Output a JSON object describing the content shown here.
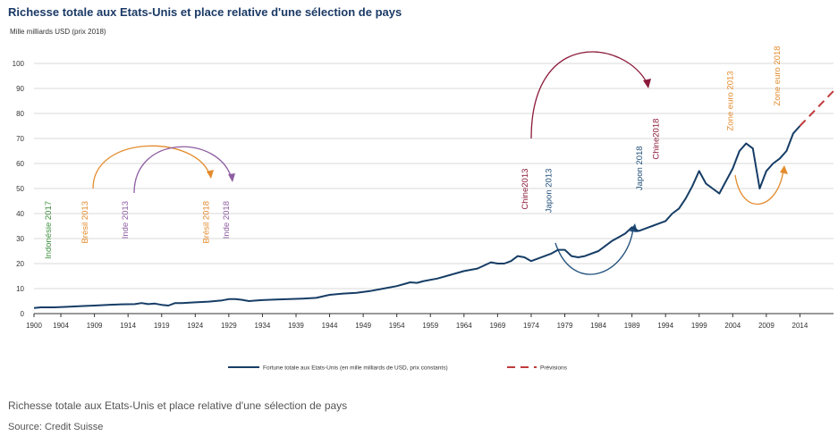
{
  "figure": {
    "title": "Richesse totale aux Etats-Unis et place relative d'une sélection de pays",
    "unit": "Mille milliards USD (prix 2018)",
    "caption": "Richesse totale aux Etats-Unis et place relative d'une sélection de pays",
    "source": "Source: Credit Suisse"
  },
  "colors": {
    "series": "#163d66",
    "forecast": "#c0393b",
    "grid": "#d9d9d9",
    "axis": "#333333"
  },
  "chart_data": {
    "type": "line",
    "title": "Richesse totale aux Etats-Unis et place relative d'une sélection de pays",
    "ylabel": "Mille milliards USD (prix 2018)",
    "xlabel": "",
    "xlim": [
      1900,
      2019
    ],
    "ylim": [
      0,
      100
    ],
    "yticks": [
      0,
      10,
      20,
      30,
      40,
      50,
      60,
      70,
      80,
      90,
      100
    ],
    "xticks": [
      1900,
      1904,
      1909,
      1914,
      1919,
      1924,
      1929,
      1934,
      1939,
      1944,
      1949,
      1954,
      1959,
      1964,
      1969,
      1974,
      1979,
      1984,
      1989,
      1994,
      1999,
      2004,
      2009,
      2014
    ],
    "grid": true,
    "legend_position": "bottom",
    "series": [
      {
        "name": "Fortune totale aux Etats-Unis (en mille milliards de USD, prix constants)",
        "style": "solid",
        "x": [
          1900,
          1901,
          1903,
          1905,
          1907,
          1909,
          1911,
          1913,
          1915,
          1916,
          1917,
          1918,
          1919,
          1920,
          1921,
          1922,
          1924,
          1926,
          1928,
          1929,
          1930,
          1931,
          1932,
          1933,
          1934,
          1936,
          1938,
          1940,
          1942,
          1944,
          1946,
          1948,
          1950,
          1952,
          1954,
          1956,
          1957,
          1958,
          1960,
          1962,
          1964,
          1966,
          1968,
          1969,
          1970,
          1971,
          1972,
          1973,
          1974,
          1975,
          1977,
          1978,
          1979,
          1980,
          1981,
          1982,
          1984,
          1985,
          1986,
          1987,
          1988,
          1989,
          1990,
          1992,
          1993,
          1994,
          1995,
          1996,
          1997,
          1998,
          1999,
          2000,
          2001,
          2002,
          2003,
          2004,
          2005,
          2006,
          2007,
          2008,
          2009,
          2010,
          2011,
          2012,
          2013,
          2014
        ],
        "y": [
          2.2,
          2.5,
          2.5,
          2.7,
          3.0,
          3.2,
          3.5,
          3.7,
          3.8,
          4.2,
          3.8,
          4.0,
          3.5,
          3.2,
          4.2,
          4.2,
          4.5,
          4.8,
          5.3,
          5.8,
          5.8,
          5.5,
          5.0,
          5.2,
          5.4,
          5.6,
          5.8,
          6.0,
          6.3,
          7.5,
          8.0,
          8.3,
          9.0,
          10.0,
          11.0,
          12.5,
          12.3,
          13.0,
          14.0,
          15.5,
          17.0,
          18.0,
          20.5,
          20.0,
          20.0,
          21.0,
          23.0,
          22.5,
          21.0,
          22.0,
          24.0,
          25.5,
          25.5,
          23.0,
          22.5,
          23.0,
          25.0,
          27.0,
          29.0,
          30.5,
          32.0,
          34.5,
          33.0,
          35.0,
          36.0,
          37.0,
          40.0,
          42.0,
          46.0,
          51.0,
          57.0,
          52.0,
          50.0,
          48.0,
          53.0,
          58.0,
          65.0,
          68.0,
          66.0,
          50.0,
          57.0,
          60.0,
          62.0,
          65.0,
          72.0,
          75.0
        ]
      },
      {
        "name": "Prévisions",
        "style": "dashed",
        "x": [
          2014,
          2019
        ],
        "y": [
          75.0,
          89.0
        ]
      }
    ],
    "annotations": [
      {
        "label": "Indonésie 2017",
        "x": 1902.5,
        "y": 45,
        "color": "#3e8e3e"
      },
      {
        "label": "Brésil 2013",
        "x": 1908,
        "y": 45,
        "color": "#e38b2c"
      },
      {
        "label": "Inde 2013",
        "x": 1914,
        "y": 45,
        "color": "#8e5ea2"
      },
      {
        "label": "Brésil 2018",
        "x": 1926,
        "y": 45,
        "color": "#e38b2c"
      },
      {
        "label": "Inde 2018",
        "x": 1929,
        "y": 45,
        "color": "#8e5ea2"
      },
      {
        "label": "Chine2013",
        "x": 1973.5,
        "y": 58,
        "color": "#8b1a3a"
      },
      {
        "label": "Japon 2013",
        "x": 1977,
        "y": 58,
        "color": "#1f4e79"
      },
      {
        "label": "Japon 2018",
        "x": 1990.5,
        "y": 67,
        "color": "#1f4e79"
      },
      {
        "label": "Chine2018",
        "x": 1993,
        "y": 78,
        "color": "#8b1a3a"
      },
      {
        "label": "Zone euro 2013",
        "x": 2004,
        "y": 97,
        "color": "#e38b2c"
      },
      {
        "label": "Zone euro 2018",
        "x": 2011,
        "y": 107,
        "color": "#e38b2c"
      }
    ]
  }
}
